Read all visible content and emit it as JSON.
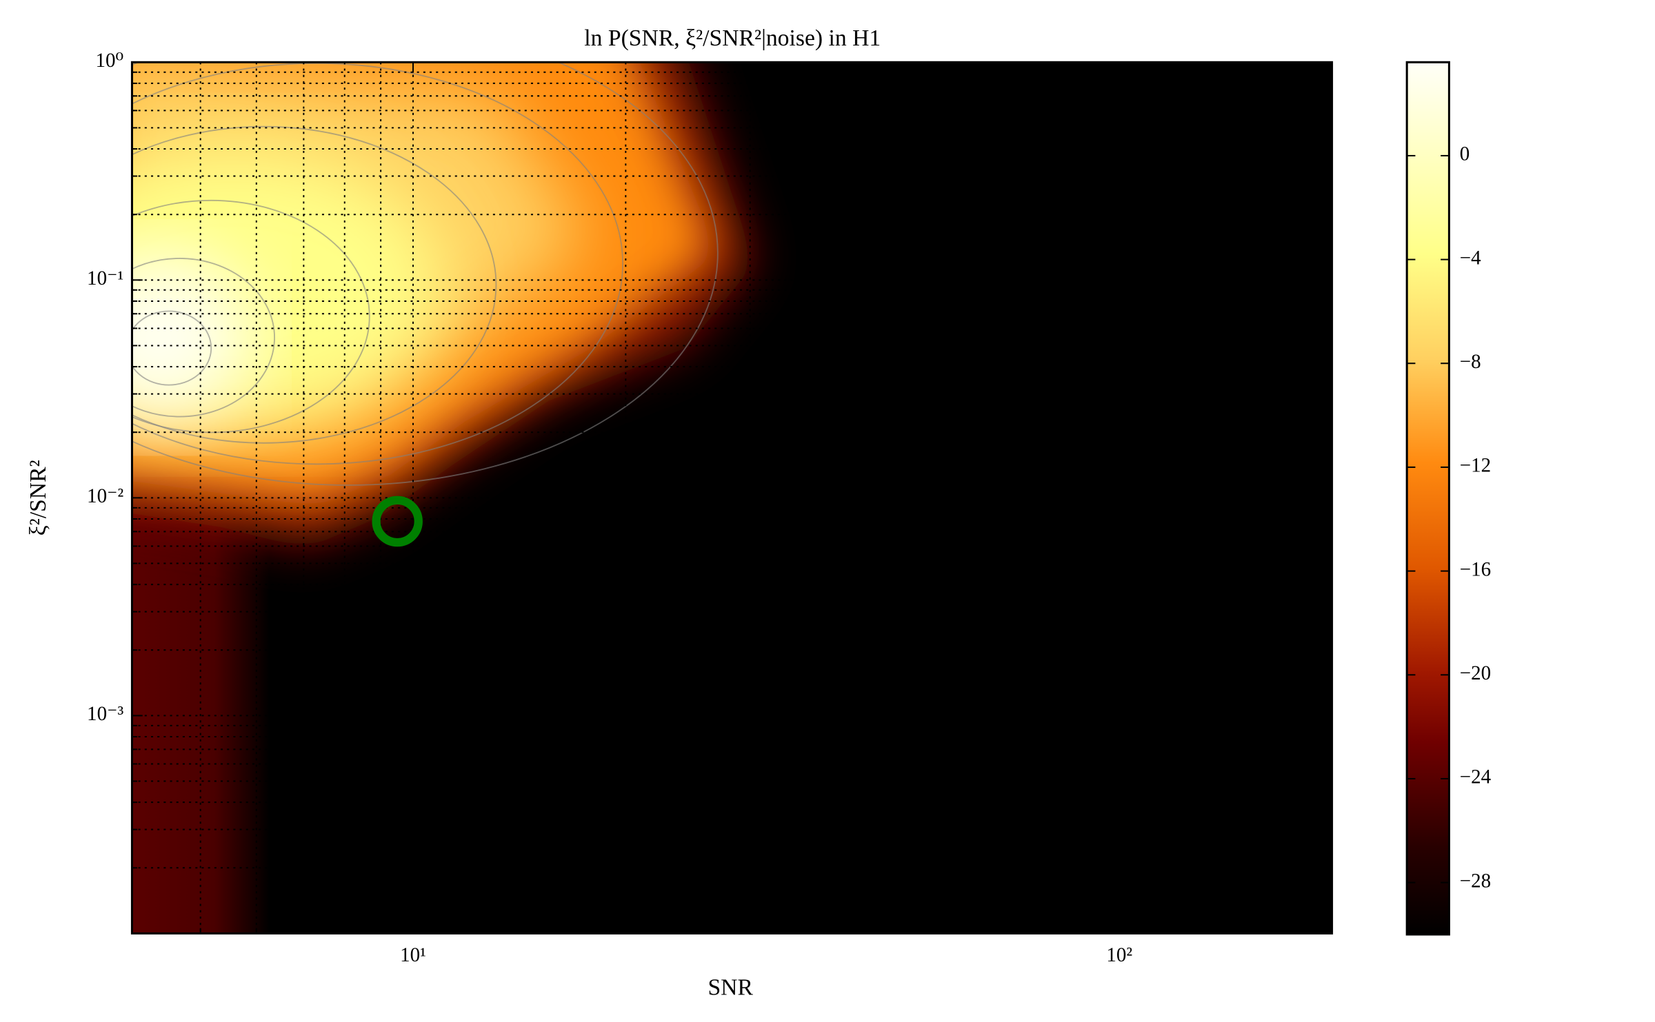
{
  "chart_data": {
    "type": "heatmap",
    "title": "ln P(SNR, ξ²/SNR²|noise) in H1",
    "x_label": "SNR",
    "y_label": "ξ²/SNR²",
    "xscale": "log",
    "yscale": "log",
    "xlim": [
      4,
      200
    ],
    "ylim": [
      0.0001,
      1
    ],
    "xticks": [
      {
        "value": 10,
        "label": "10¹"
      },
      {
        "value": 100,
        "label": "10²"
      }
    ],
    "yticks": [
      {
        "value": 0.001,
        "label": "10⁻³"
      },
      {
        "value": 0.01,
        "label": "10⁻²"
      },
      {
        "value": 0.1,
        "label": "10⁻¹"
      },
      {
        "value": 1,
        "label": "10⁰"
      }
    ],
    "xminorticks": [
      5,
      6,
      7,
      8,
      9,
      20,
      30,
      40,
      50,
      60,
      70,
      80,
      90,
      200
    ],
    "yminorticks": [
      0.0002,
      0.0003,
      0.0004,
      0.0005,
      0.0006,
      0.0007,
      0.0008,
      0.0009,
      0.002,
      0.003,
      0.004,
      0.005,
      0.006,
      0.007,
      0.008,
      0.009,
      0.02,
      0.03,
      0.04,
      0.05,
      0.06,
      0.07,
      0.08,
      0.09,
      0.2,
      0.3,
      0.4,
      0.5,
      0.6,
      0.7,
      0.8,
      0.9
    ],
    "grid": true,
    "colorbar": {
      "clim": [
        -30,
        3.6
      ],
      "ticks": [
        0,
        {
          "value": -4,
          "label": "−4"
        },
        {
          "value": -8,
          "label": "−8"
        },
        {
          "value": -12,
          "label": "−12"
        },
        {
          "value": -16,
          "label": "−16"
        },
        {
          "value": -20,
          "label": "−20"
        },
        {
          "value": -24,
          "label": "−24"
        },
        {
          "value": -28,
          "label": "−28"
        }
      ]
    },
    "points": {
      "x": [
        9.5
      ],
      "y": [
        0.0078
      ],
      "color": "green"
    }
  }
}
